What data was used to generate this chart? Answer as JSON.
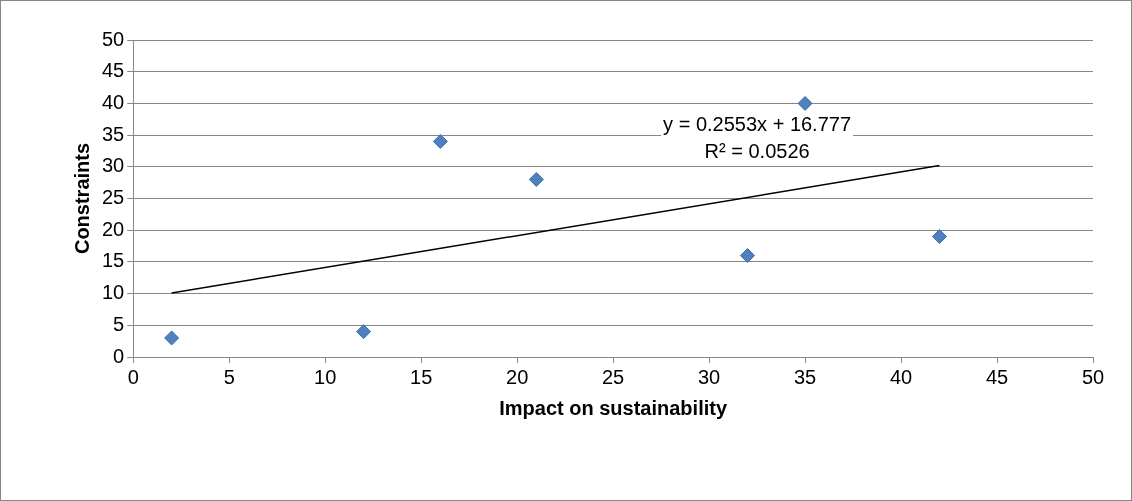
{
  "chart_data": {
    "type": "scatter",
    "xlabel": "Impact on sustainability",
    "ylabel": "Constraints",
    "series": [
      {
        "type": "scatter",
        "color": "#4f81bd",
        "x": [
          2,
          12,
          16,
          21,
          32,
          35,
          42
        ],
        "values": [
          3,
          4,
          34,
          28,
          16,
          40,
          19
        ],
        "marker": "diamond"
      },
      {
        "type": "line",
        "color": "#000000",
        "x": [
          2,
          42
        ],
        "values": [
          10.1,
          30.2
        ],
        "marker": "none"
      }
    ],
    "annotations": [
      "y = 0.2553x + 16.777",
      "R² = 0.0526"
    ],
    "xlim": [
      0,
      50
    ],
    "xticks": [
      0,
      5,
      10,
      15,
      20,
      25,
      30,
      35,
      40,
      45,
      50
    ],
    "ylim": [
      0,
      50
    ],
    "yticks": [
      0,
      5,
      10,
      15,
      20,
      25,
      30,
      35,
      40,
      45,
      50
    ],
    "grid": "y",
    "legend": false
  }
}
